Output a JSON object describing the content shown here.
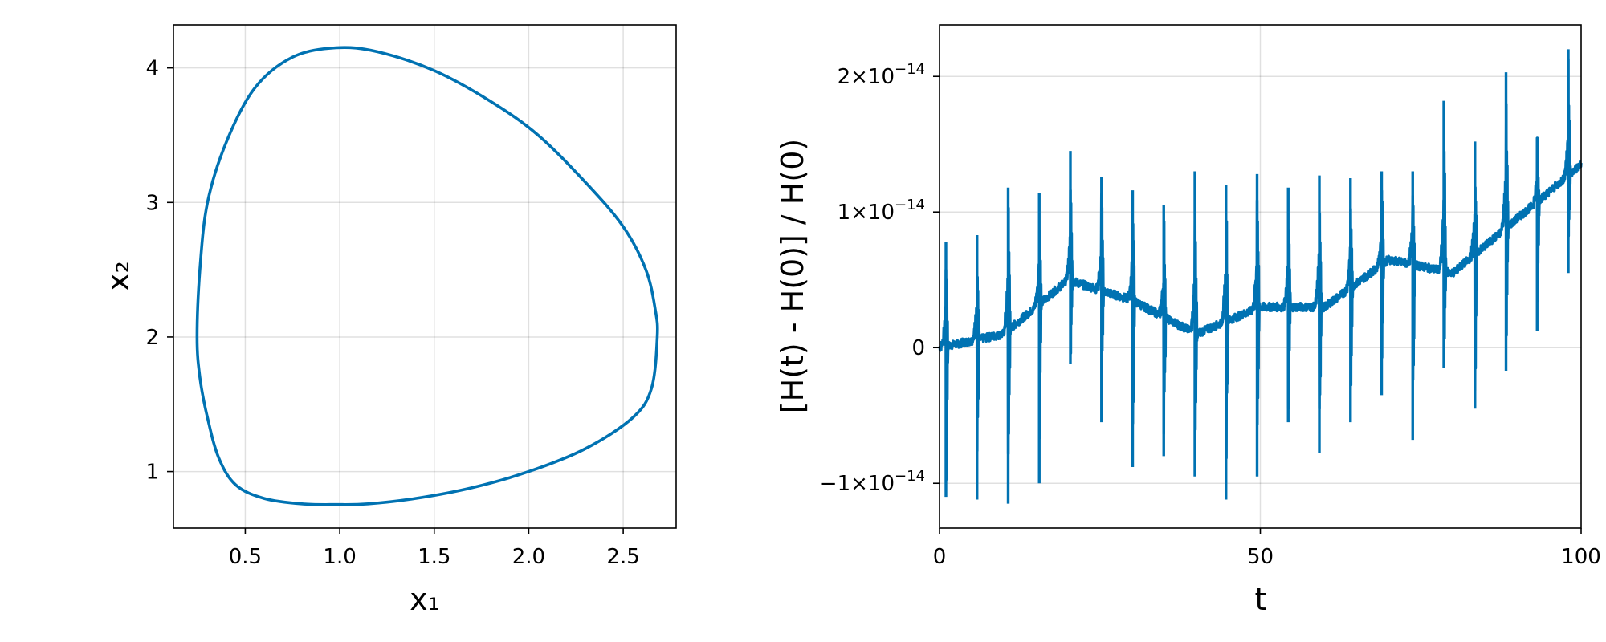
{
  "colors": {
    "series": "#0072b2"
  },
  "chart_data": [
    {
      "type": "line",
      "xlabel": "x₁",
      "ylabel": "x₂",
      "xlim": [
        0.12,
        2.78
      ],
      "ylim": [
        0.58,
        4.32
      ],
      "xticks": [
        0.5,
        1.0,
        1.5,
        2.0,
        2.5
      ],
      "xtick_labels": [
        "0.5",
        "1.0",
        "1.5",
        "2.0",
        "2.5"
      ],
      "yticks": [
        1,
        2,
        3,
        4
      ],
      "ytick_labels": [
        "1",
        "2",
        "3",
        "4"
      ],
      "grid": true,
      "series": [
        {
          "closed": true,
          "x": [
            2.68,
            2.65,
            2.55,
            2.3,
            2.0,
            1.7,
            1.4,
            1.15,
            0.98,
            0.8,
            0.6,
            0.45,
            0.36,
            0.3,
            0.26,
            0.245,
            0.26,
            0.3,
            0.4,
            0.55,
            0.75,
            0.98,
            1.2,
            1.5,
            1.8,
            2.05,
            2.3,
            2.5,
            2.62,
            2.67,
            2.68
          ],
          "y": [
            2.0,
            1.62,
            1.4,
            1.17,
            1.0,
            0.88,
            0.8,
            0.76,
            0.755,
            0.76,
            0.8,
            0.9,
            1.1,
            1.4,
            1.7,
            2.0,
            2.5,
            3.0,
            3.45,
            3.85,
            4.08,
            4.15,
            4.12,
            3.98,
            3.75,
            3.5,
            3.15,
            2.82,
            2.5,
            2.2,
            2.0
          ]
        }
      ]
    },
    {
      "type": "line",
      "xlabel": "t",
      "ylabel": "[H(t) - H(0)] / H(0)",
      "xlim": [
        0,
        100
      ],
      "ylim": [
        -1.33e-14,
        2.38e-14
      ],
      "xticks": [
        0,
        50,
        100
      ],
      "xtick_labels": [
        "0",
        "50",
        "100"
      ],
      "yticks": [
        -1e-14,
        0,
        1e-14,
        2e-14
      ],
      "ytick_labels": [
        {
          "mant": "−1×10",
          "exp": "−14"
        },
        {
          "mant": "0",
          "exp": ""
        },
        {
          "mant": "1×10",
          "exp": "−14"
        },
        {
          "mant": "2×10",
          "exp": "−14"
        }
      ],
      "grid": true,
      "spike_period": 4.85,
      "spike_phase": 1.0,
      "spikes": [
        {
          "t": 1.0,
          "high": 7.8e-15,
          "low": -1.1e-14
        },
        {
          "t": 5.85,
          "high": 8.3e-15,
          "low": -1.12e-14
        },
        {
          "t": 10.7,
          "high": 1.18e-14,
          "low": -1.15e-14
        },
        {
          "t": 15.55,
          "high": 1.14e-14,
          "low": -1e-14
        },
        {
          "t": 20.4,
          "high": 1.45e-14,
          "low": -1.2e-15
        },
        {
          "t": 25.25,
          "high": 1.26e-14,
          "low": -5.5e-15
        },
        {
          "t": 30.1,
          "high": 1.16e-14,
          "low": -8.8e-15
        },
        {
          "t": 34.95,
          "high": 1.05e-14,
          "low": -8e-15
        },
        {
          "t": 39.8,
          "high": 1.3e-14,
          "low": -9.5e-15
        },
        {
          "t": 44.65,
          "high": 1.2e-14,
          "low": -1.12e-14
        },
        {
          "t": 49.5,
          "high": 1.28e-14,
          "low": -9.5e-15
        },
        {
          "t": 54.35,
          "high": 1.18e-14,
          "low": -5.5e-15
        },
        {
          "t": 59.2,
          "high": 1.27e-14,
          "low": -7.8e-15
        },
        {
          "t": 64.05,
          "high": 1.25e-14,
          "low": -5.5e-15
        },
        {
          "t": 68.9,
          "high": 1.3e-14,
          "low": -3.5e-15
        },
        {
          "t": 73.75,
          "high": 1.3e-14,
          "low": -6.8e-15
        },
        {
          "t": 78.6,
          "high": 1.82e-14,
          "low": -1.5e-15
        },
        {
          "t": 83.45,
          "high": 1.52e-14,
          "low": -4.5e-15
        },
        {
          "t": 88.3,
          "high": 2.03e-14,
          "low": -1.7e-15
        },
        {
          "t": 93.15,
          "high": 1.55e-14,
          "low": 1.2e-15
        },
        {
          "t": 98.0,
          "high": 2.2e-14,
          "low": 5.5e-15
        }
      ],
      "baseline": [
        {
          "t": 0,
          "h": 0.0
        },
        {
          "t": 10,
          "h": 1e-15
        },
        {
          "t": 20,
          "h": 5e-15
        },
        {
          "t": 30,
          "h": 3.5e-15
        },
        {
          "t": 40,
          "h": 1e-15
        },
        {
          "t": 50,
          "h": 3e-15
        },
        {
          "t": 60,
          "h": 3e-15
        },
        {
          "t": 70,
          "h": 6.5e-15
        },
        {
          "t": 80,
          "h": 5.5e-15
        },
        {
          "t": 90,
          "h": 9.5e-15
        },
        {
          "t": 100,
          "h": 1.35e-14
        }
      ]
    }
  ]
}
